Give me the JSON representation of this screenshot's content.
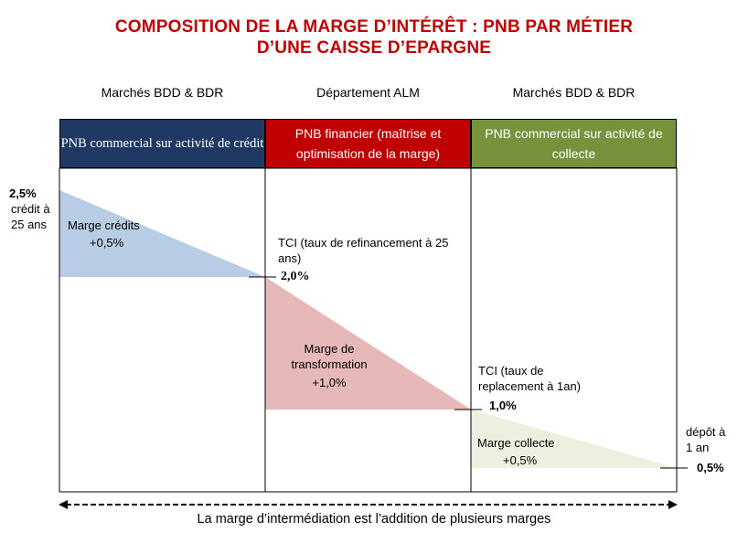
{
  "title": {
    "line1": "COMPOSITION DE LA MARGE D’INTÉRÊT : PNB PAR MÉTIER",
    "line2": "D’UNE CAISSE D’EPARGNE"
  },
  "columns": [
    {
      "header": "Marchés BDD & BDR",
      "box": "PNB commercial sur activité de crédit",
      "color": "#1f3864"
    },
    {
      "header": "Département ALM",
      "box": "PNB financier (maîtrise et optimisation de la marge)",
      "color": "#c00000"
    },
    {
      "header": "Marchés BDD & BDR",
      "box": "PNB commercial sur activité de collecte",
      "color": "#76923c"
    }
  ],
  "labels": {
    "credit_rate": "2,5%",
    "credit_desc": "crédit à 25 ans",
    "marge_credits": "Marge crédits",
    "marge_credits_val": "+0,5%",
    "tci_25": "TCI (taux de refinancement à 25 ans)",
    "rate_2": "2,0%",
    "marge_transfo": "Marge de transformation",
    "marge_transfo_val": "+1,0%",
    "tci_1an": "TCI (taux de replacement à 1an)",
    "rate_1": "1,0%",
    "marge_collecte": "Marge collecte",
    "marge_collecte_val": "+0,5%",
    "depot_desc": "dépôt à 1 an",
    "depot_rate": "0,5%"
  },
  "colors": {
    "credit_fill": "#b8cce4",
    "alm_fill": "#e6b8b7",
    "collecte_fill": "#ebf1de"
  },
  "footer": "La marge d’intermédiation est l’addition de plusieurs marges"
}
